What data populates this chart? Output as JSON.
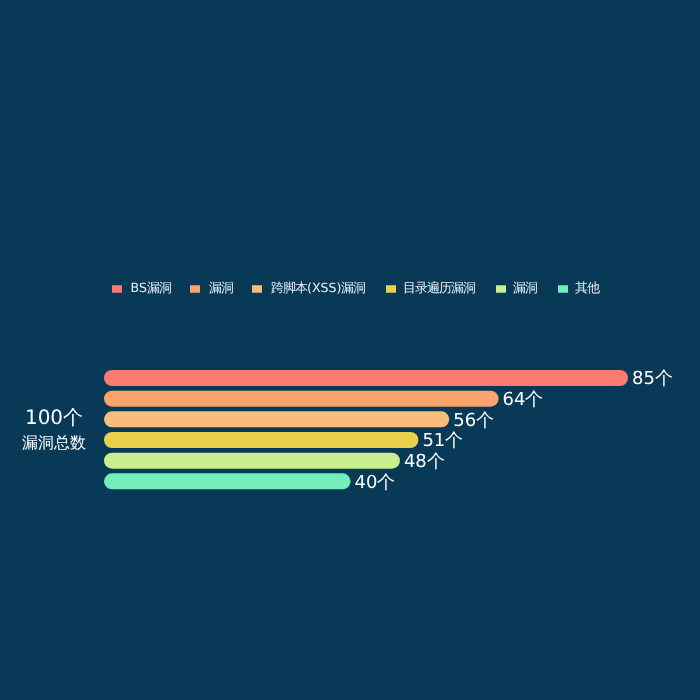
{
  "chart_data": {
    "type": "bar",
    "orientation": "horizontal",
    "stacked": true,
    "categories": [
      null,
      null,
      null,
      null,
      null,
      null
    ],
    "series": [
      {
        "name": "BS漏洞",
        "color": "#fb7a72",
        "values": [
          85,
          null,
          null,
          null,
          null,
          null
        ],
        "value_labels": [
          "85个",
          null,
          null,
          null,
          null,
          null
        ]
      },
      {
        "name": "漏洞",
        "color": "#f9a46c",
        "values": [
          null,
          64,
          null,
          null,
          null,
          null
        ],
        "value_labels": [
          null,
          "64个",
          null,
          null,
          null,
          null
        ]
      },
      {
        "name": "跨脚本(XSS)漏洞",
        "color": "#f8bd7c",
        "values": [
          null,
          null,
          56,
          null,
          null,
          null
        ],
        "value_labels": [
          null,
          null,
          "56个",
          null,
          null,
          null
        ]
      },
      {
        "name": "目录遍历漏洞",
        "color": "#e9d24a",
        "values": [
          null,
          null,
          null,
          51,
          null,
          null
        ],
        "value_labels": [
          null,
          null,
          null,
          "51个",
          null,
          null
        ]
      },
      {
        "name": "漏洞",
        "color": "#c9ee8e",
        "values": [
          null,
          null,
          null,
          null,
          48,
          null
        ],
        "value_labels": [
          null,
          null,
          null,
          null,
          "48个",
          null
        ]
      },
      {
        "name": "其他",
        "color": "#74ecbc",
        "values": [
          null,
          null,
          null,
          null,
          null,
          40
        ],
        "value_labels": [
          null,
          null,
          null,
          null,
          null,
          "40个"
        ]
      }
    ],
    "annotations": [
      "100个",
      "漏洞总数"
    ],
    "legend": "top"
  }
}
